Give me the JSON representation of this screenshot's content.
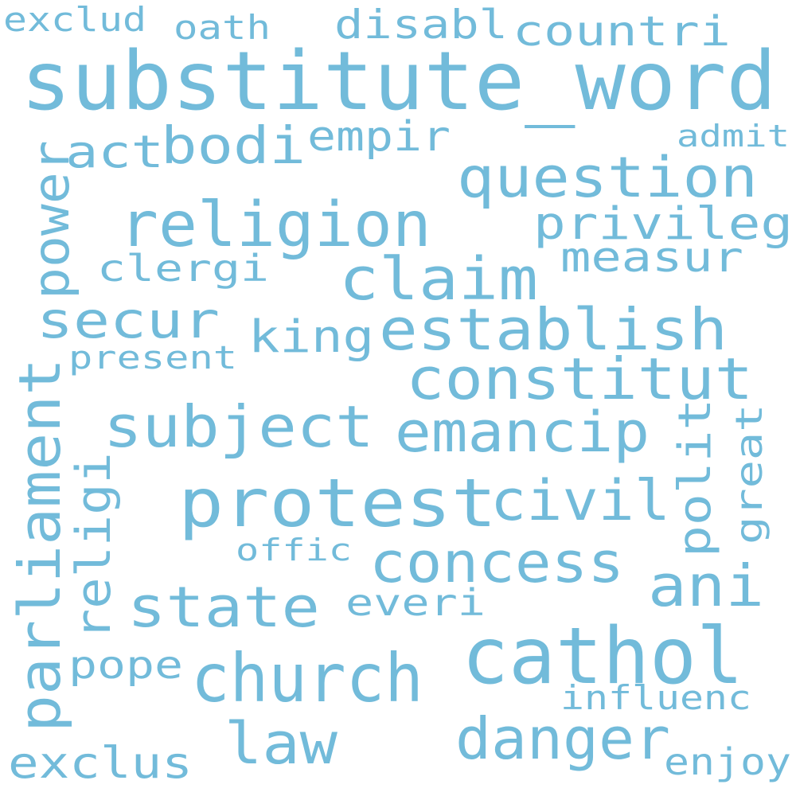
{
  "word_color": "#72BBDA",
  "background": "#FFFFFF",
  "words": {
    "substitute_word": "substitute_word",
    "religion": "religion",
    "protest": "protest",
    "cathol": "cathol",
    "church": "church",
    "establish": "establish",
    "constitut": "constitut",
    "subject": "subject",
    "question": "question",
    "claim": "claim",
    "state": "state",
    "emancip": "emancip",
    "civil": "civil",
    "concess": "concess",
    "danger": "danger",
    "parliament": "parliament",
    "power": "power",
    "secur": "secur",
    "law": "law",
    "ani": "ani",
    "bodi": "bodi",
    "act": "act",
    "privileg": "privileg",
    "king": "king",
    "measur": "measur",
    "empir": "empir",
    "countri": "countri",
    "disabl": "disabl",
    "religi": "religi",
    "polit": "polit",
    "exclus": "exclus",
    "clergi": "clergi",
    "everi": "everi",
    "pope": "pope",
    "great": "great",
    "enjoy": "enjoy",
    "influenc": "influenc",
    "present": "present",
    "offic": "offic",
    "exclud": "exclud",
    "oath": "oath",
    "admit": "admit"
  }
}
